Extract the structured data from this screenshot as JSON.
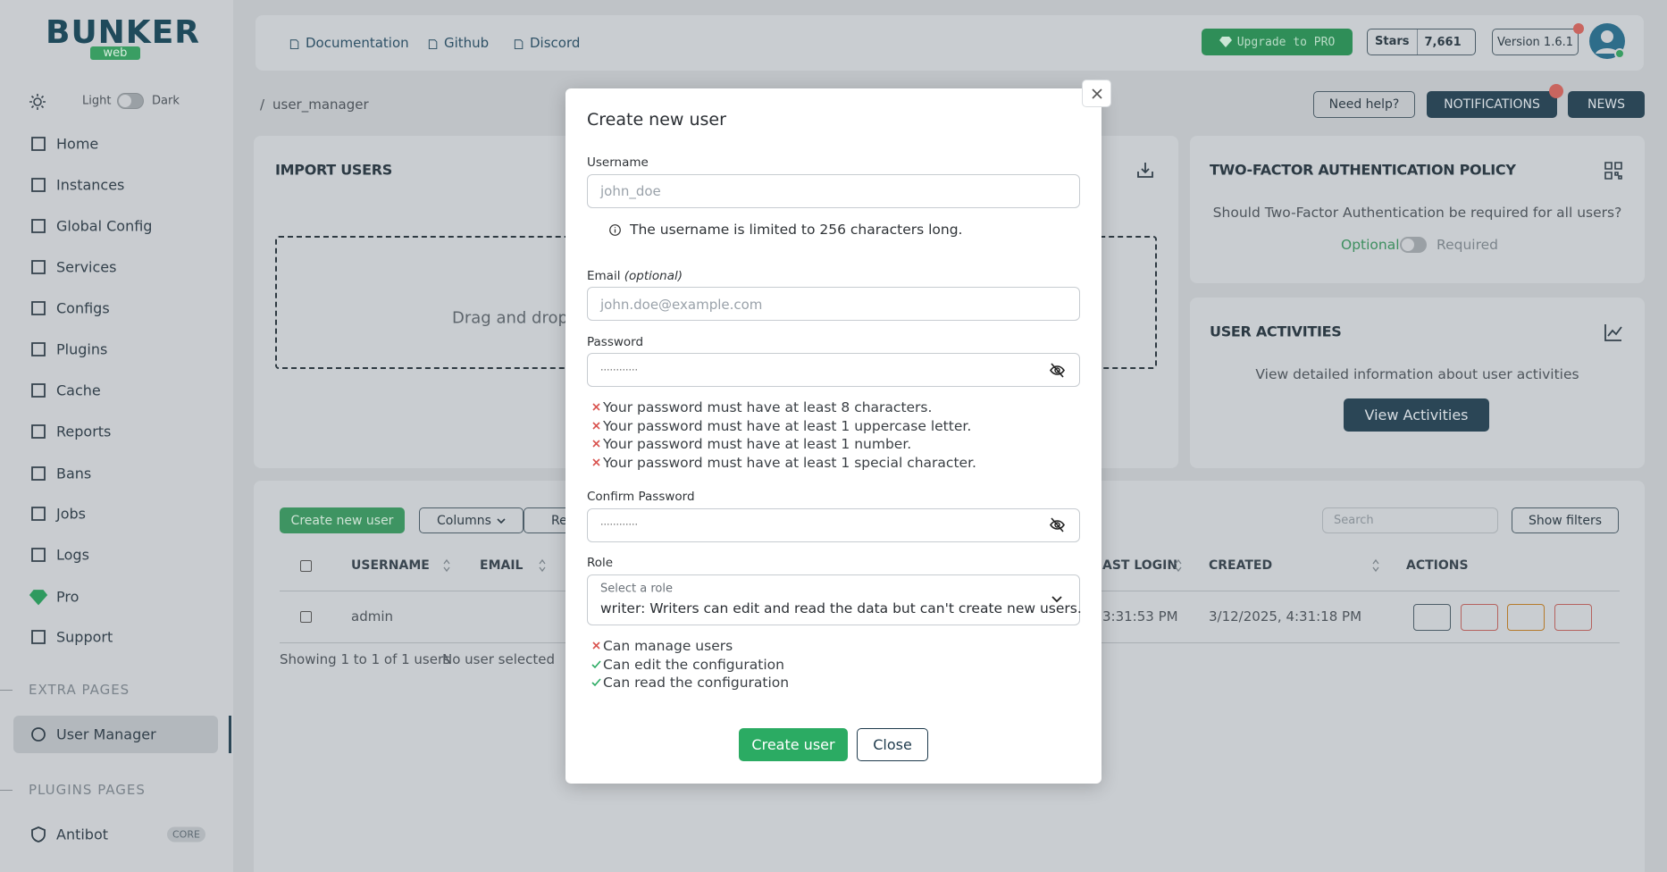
{
  "sidebar": {
    "brand": "BUNKER",
    "brand_sub": "web",
    "theme": {
      "light": "Light",
      "dark": "Dark"
    },
    "nav": [
      "Home",
      "Instances",
      "Global Config",
      "Services",
      "Configs",
      "Plugins",
      "Cache",
      "Reports",
      "Bans",
      "Jobs",
      "Logs",
      "Pro",
      "Support"
    ],
    "extra_pages": {
      "title": "EXTRA PAGES",
      "items": [
        "User Manager"
      ]
    },
    "plugins_pages": {
      "title": "PLUGINS PAGES",
      "items": [
        {
          "label": "Antibot",
          "badge": "CORE"
        }
      ]
    }
  },
  "topbar": {
    "links": [
      "Documentation",
      "Github",
      "Discord"
    ],
    "upgrade": "Upgrade to PRO",
    "stars": {
      "label": "Stars",
      "count": "7,661"
    },
    "version": "Version 1.6.1"
  },
  "breadcrumb": "user_manager",
  "header_buttons": {
    "help": "Need help?",
    "notifications": "NOTIFICATIONS",
    "news": "NEWS"
  },
  "import_users": {
    "title": "IMPORT USERS",
    "dropzone": "Drag and drop y"
  },
  "two_factor": {
    "title": "TWO-FACTOR AUTHENTICATION POLICY",
    "question": "Should Two-Factor Authentication be required for all users?",
    "optional": "Optional",
    "required": "Required"
  },
  "user_activities": {
    "title": "USER ACTIVITIES",
    "description": "View detailed information about user activities",
    "button": "View Activities"
  },
  "table": {
    "create": "Create new user",
    "columns": "Columns",
    "reset": "Re",
    "search": "Search",
    "filters": "Show filters",
    "headers": [
      "USERNAME",
      "EMAIL",
      "AST LOGIN",
      "CREATED",
      "ACTIONS"
    ],
    "rows": [
      [
        "admin",
        "3:31:53 PM",
        "3/12/2025, 4:31:18 PM"
      ]
    ],
    "showing": "Showing 1 to 1 of 1 users",
    "selection": "No user selected"
  },
  "modal": {
    "title": "Create new user",
    "username_label": "Username",
    "username_placeholder": "john_doe",
    "username_hint": "The username is limited to 256 characters long.",
    "email_label": "Email",
    "email_optional": "(optional)",
    "email_placeholder": "john.doe@example.com",
    "password_label": "Password",
    "password_placeholder": "············",
    "password_rules": [
      "Your password must have at least 8 characters.",
      "Your password must have at least 1 uppercase letter.",
      "Your password must have at least 1 number.",
      "Your password must have at least 1 special character."
    ],
    "confirm_label": "Confirm Password",
    "confirm_placeholder": "············",
    "role_label": "Role",
    "role_placeholder": "Select a role",
    "role_value": "writer: Writers can edit and read the data but can't create new users.",
    "permissions": [
      {
        "text": "Can manage users",
        "ok": false
      },
      {
        "text": "Can edit the configuration",
        "ok": true
      },
      {
        "text": "Can read the configuration",
        "ok": true
      }
    ],
    "submit": "Create user",
    "close": "Close"
  }
}
